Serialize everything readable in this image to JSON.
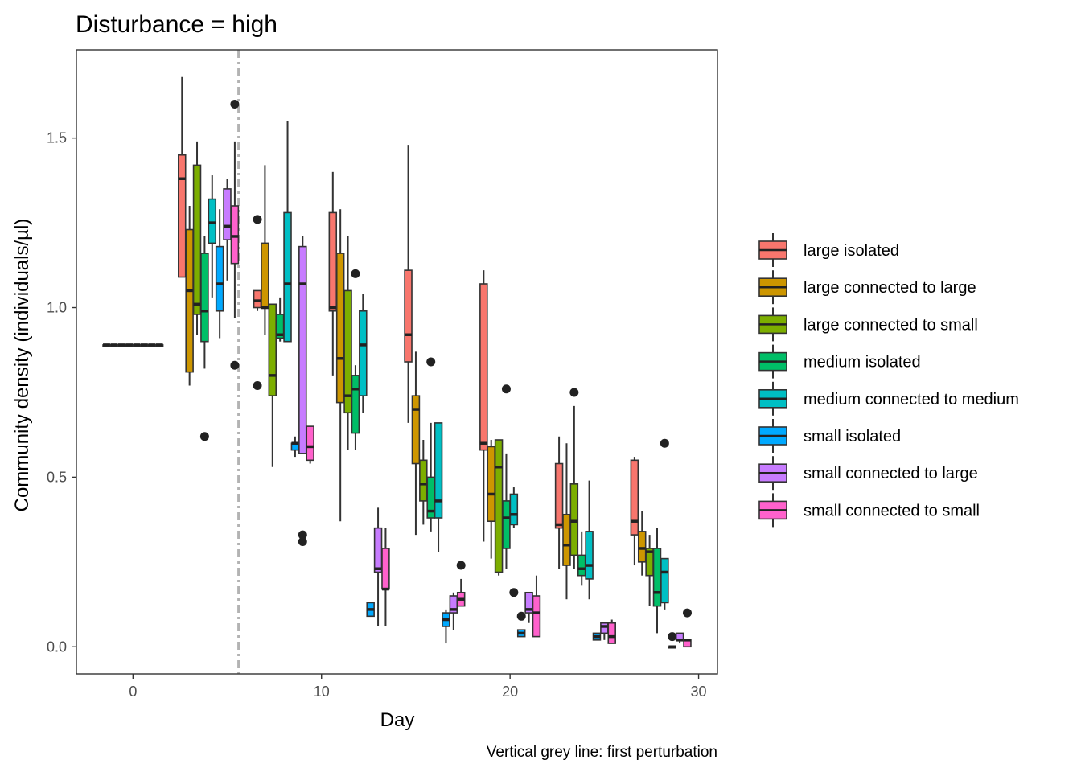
{
  "chart_data": {
    "type": "boxplot",
    "title": "Disturbance = high",
    "xlabel": "Day",
    "ylabel": "Community density (individuals/µl)",
    "caption": "Vertical grey line: first perturbation",
    "xlim": [
      -3,
      31
    ],
    "ylim": [
      -0.08,
      1.76
    ],
    "xticks": [
      0,
      10,
      20,
      30
    ],
    "yticks": [
      0.0,
      0.5,
      1.0,
      1.5
    ],
    "xtick_labels": [
      "0",
      "10",
      "20",
      "30"
    ],
    "ytick_labels": [
      "0.0",
      "0.5",
      "1.0",
      "1.5"
    ],
    "perturbation_day": 5.6,
    "legend_position": "right",
    "grid": false,
    "series": [
      {
        "name": "large isolated",
        "color": "#F8766D"
      },
      {
        "name": "large connected to large",
        "color": "#CD9600"
      },
      {
        "name": "large connected to small",
        "color": "#7CAE00"
      },
      {
        "name": "medium isolated",
        "color": "#00BE67"
      },
      {
        "name": "medium connected to medium",
        "color": "#00BFC4"
      },
      {
        "name": "small isolated",
        "color": "#00A9FF"
      },
      {
        "name": "small connected to large",
        "color": "#C77CFF"
      },
      {
        "name": "small connected to small",
        "color": "#FF61CC"
      }
    ],
    "days": [
      0,
      4,
      8,
      12,
      16,
      20,
      24,
      28
    ],
    "boxes": {
      "0": [
        [
          0.89,
          0.89,
          0.89,
          0.89,
          0.89,
          []
        ],
        [
          0.89,
          0.89,
          0.89,
          0.89,
          0.89,
          []
        ],
        [
          0.89,
          0.89,
          0.89,
          0.89,
          0.89,
          []
        ],
        [
          0.89,
          0.89,
          0.89,
          0.89,
          0.89,
          []
        ],
        [
          0.89,
          0.89,
          0.89,
          0.89,
          0.89,
          []
        ],
        [
          0.89,
          0.89,
          0.89,
          0.89,
          0.89,
          []
        ],
        [
          0.89,
          0.89,
          0.89,
          0.89,
          0.89,
          []
        ],
        [
          0.89,
          0.89,
          0.89,
          0.89,
          0.89,
          []
        ]
      ],
      "4": [
        [
          1.09,
          1.09,
          1.38,
          1.45,
          1.68,
          []
        ],
        [
          0.77,
          0.81,
          1.05,
          1.23,
          1.3,
          []
        ],
        [
          0.92,
          0.98,
          1.01,
          1.42,
          1.49,
          []
        ],
        [
          0.82,
          0.9,
          0.99,
          1.16,
          1.21,
          [
            0.62
          ]
        ],
        [
          1.03,
          1.19,
          1.25,
          1.32,
          1.39,
          []
        ],
        [
          0.91,
          0.99,
          1.07,
          1.18,
          1.29,
          []
        ],
        [
          1.08,
          1.2,
          1.24,
          1.35,
          1.38,
          []
        ],
        [
          0.97,
          1.13,
          1.21,
          1.3,
          1.49,
          [
            1.6,
            0.83
          ]
        ]
      ],
      "8": [
        [
          0.99,
          1.0,
          1.02,
          1.05,
          1.05,
          [
            1.26,
            0.77
          ]
        ],
        [
          0.92,
          1.0,
          1.0,
          1.19,
          1.42,
          []
        ],
        [
          0.53,
          0.74,
          0.8,
          1.01,
          1.01,
          []
        ],
        [
          0.9,
          0.91,
          0.92,
          0.98,
          1.03,
          []
        ],
        [
          0.9,
          0.9,
          1.07,
          1.28,
          1.55,
          []
        ],
        [
          0.56,
          0.58,
          0.6,
          0.6,
          0.62,
          []
        ],
        [
          0.57,
          0.57,
          1.07,
          1.18,
          1.21,
          [
            0.33,
            0.31
          ]
        ],
        [
          0.54,
          0.55,
          0.59,
          0.65,
          0.65,
          []
        ]
      ],
      "12": [
        [
          0.8,
          0.99,
          1.0,
          1.28,
          1.4,
          []
        ],
        [
          0.37,
          0.72,
          0.85,
          1.16,
          1.29,
          []
        ],
        [
          0.58,
          0.69,
          0.74,
          1.05,
          1.21,
          []
        ],
        [
          0.58,
          0.63,
          0.76,
          0.8,
          0.83,
          [
            1.1
          ]
        ],
        [
          0.69,
          0.74,
          0.89,
          0.99,
          1.04,
          []
        ],
        [
          0.09,
          0.09,
          0.11,
          0.13,
          0.13,
          []
        ],
        [
          0.06,
          0.22,
          0.23,
          0.35,
          0.41,
          []
        ],
        [
          0.06,
          0.17,
          0.17,
          0.29,
          0.35,
          []
        ]
      ],
      "16": [
        [
          0.66,
          0.84,
          0.92,
          1.11,
          1.48,
          []
        ],
        [
          0.33,
          0.54,
          0.7,
          0.74,
          0.87,
          []
        ],
        [
          0.36,
          0.43,
          0.48,
          0.55,
          0.61,
          []
        ],
        [
          0.34,
          0.38,
          0.4,
          0.5,
          0.66,
          [
            0.84
          ]
        ],
        [
          0.28,
          0.38,
          0.43,
          0.66,
          0.66,
          []
        ],
        [
          0.01,
          0.06,
          0.08,
          0.1,
          0.11,
          []
        ],
        [
          0.05,
          0.1,
          0.11,
          0.15,
          0.16,
          []
        ],
        [
          0.12,
          0.12,
          0.14,
          0.16,
          0.2,
          [
            0.24
          ]
        ]
      ],
      "20": [
        [
          0.31,
          0.58,
          0.6,
          1.07,
          1.11,
          []
        ],
        [
          0.26,
          0.37,
          0.45,
          0.59,
          0.61,
          []
        ],
        [
          0.21,
          0.22,
          0.53,
          0.61,
          0.61,
          []
        ],
        [
          0.23,
          0.29,
          0.38,
          0.43,
          0.57,
          [
            0.76
          ]
        ],
        [
          0.35,
          0.36,
          0.39,
          0.45,
          0.47,
          [
            0.16
          ]
        ],
        [
          0.03,
          0.03,
          0.04,
          0.05,
          0.05,
          [
            0.09
          ]
        ],
        [
          0.07,
          0.1,
          0.11,
          0.16,
          0.16,
          []
        ],
        [
          0.03,
          0.03,
          0.1,
          0.15,
          0.21,
          []
        ]
      ],
      "24": [
        [
          0.23,
          0.35,
          0.36,
          0.54,
          0.62,
          []
        ],
        [
          0.14,
          0.24,
          0.3,
          0.39,
          0.6,
          []
        ],
        [
          0.23,
          0.27,
          0.37,
          0.48,
          0.71,
          [
            0.75
          ]
        ],
        [
          0.18,
          0.21,
          0.23,
          0.27,
          0.34,
          []
        ],
        [
          0.14,
          0.2,
          0.24,
          0.34,
          0.49,
          []
        ],
        [
          0.02,
          0.02,
          0.03,
          0.04,
          0.04,
          []
        ],
        [
          0.02,
          0.04,
          0.06,
          0.07,
          0.07,
          []
        ],
        [
          0.01,
          0.01,
          0.03,
          0.07,
          0.08,
          []
        ]
      ],
      "28": [
        [
          0.24,
          0.33,
          0.37,
          0.55,
          0.56,
          []
        ],
        [
          0.21,
          0.25,
          0.29,
          0.34,
          0.4,
          []
        ],
        [
          0.12,
          0.21,
          0.28,
          0.29,
          0.33,
          []
        ],
        [
          0.04,
          0.12,
          0.16,
          0.29,
          0.35,
          []
        ],
        [
          0.11,
          0.13,
          0.22,
          0.26,
          0.26,
          [
            0.6
          ]
        ],
        [
          0.0,
          0.0,
          0.0,
          0.0,
          0.0,
          [
            0.03
          ]
        ],
        [
          0.01,
          0.02,
          0.02,
          0.04,
          0.04,
          []
        ],
        [
          0.0,
          0.0,
          0.02,
          0.02,
          0.02,
          [
            0.1
          ]
        ]
      ]
    }
  }
}
